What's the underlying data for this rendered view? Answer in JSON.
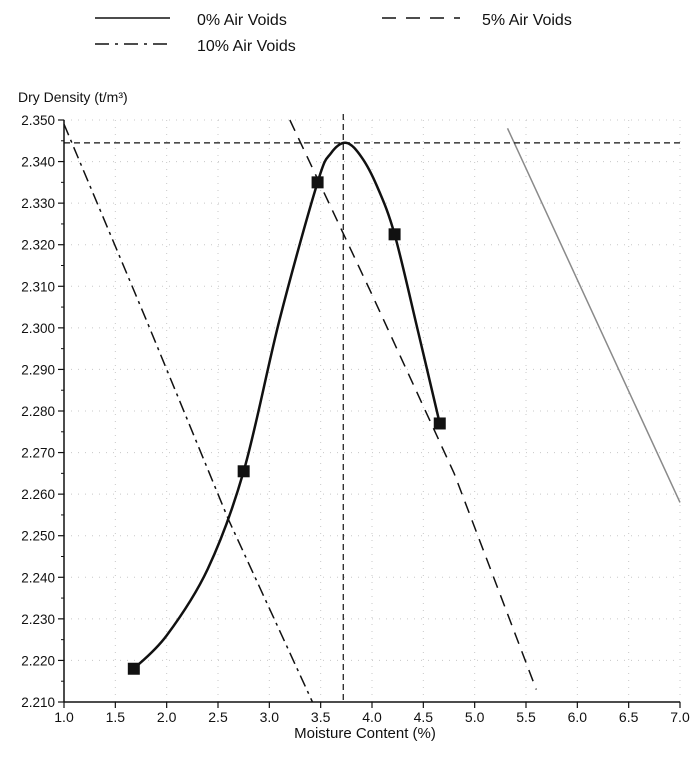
{
  "chart_data": {
    "type": "line",
    "xlabel": "Moisture Content (%)",
    "ylabel": "Dry Density (t/m³)",
    "xlim": [
      1.0,
      7.0
    ],
    "ylim": [
      2.21,
      2.35
    ],
    "x_ticks": [
      "1.0",
      "1.5",
      "2.0",
      "2.5",
      "3.0",
      "3.5",
      "4.0",
      "4.5",
      "5.0",
      "5.5",
      "6.0",
      "6.5",
      "7.0"
    ],
    "y_ticks": [
      "2.210",
      "2.220",
      "2.230",
      "2.240",
      "2.250",
      "2.260",
      "2.270",
      "2.280",
      "2.290",
      "2.300",
      "2.310",
      "2.320",
      "2.330",
      "2.340",
      "2.350"
    ],
    "grid": true,
    "legend_position": "top",
    "legend": [
      {
        "label": "0% Air Voids",
        "style": "solid"
      },
      {
        "label": "5% Air Voids",
        "style": "dashed"
      },
      {
        "label": "10% Air Voids",
        "style": "dashdot"
      }
    ],
    "compaction_points": {
      "x": [
        1.68,
        2.75,
        3.47,
        4.22,
        4.66
      ],
      "y": [
        2.218,
        2.2655,
        2.335,
        2.3225,
        2.277
      ]
    },
    "compaction_curve": {
      "x": [
        1.68,
        2.0,
        2.4,
        2.75,
        3.1,
        3.47,
        3.6,
        3.75,
        3.9,
        4.05,
        4.22,
        4.45,
        4.66
      ],
      "y": [
        2.218,
        2.226,
        2.242,
        2.2655,
        2.302,
        2.335,
        2.342,
        2.3445,
        2.341,
        2.334,
        2.3225,
        2.299,
        2.277
      ]
    },
    "air_void_lines": [
      {
        "x": [
          5.32,
          7.0
        ],
        "y": [
          2.348,
          2.258
        ]
      },
      {
        "x": [
          3.2,
          4.0,
          4.8,
          5.6
        ],
        "y": [
          2.35,
          2.308,
          2.265,
          2.213
        ]
      },
      {
        "x": [
          1.0,
          1.8,
          2.6,
          3.42
        ],
        "y": [
          2.349,
          2.302,
          2.254,
          2.21
        ]
      }
    ],
    "max_dry_density": 2.3445,
    "optimum_moisture_content": 3.72
  }
}
